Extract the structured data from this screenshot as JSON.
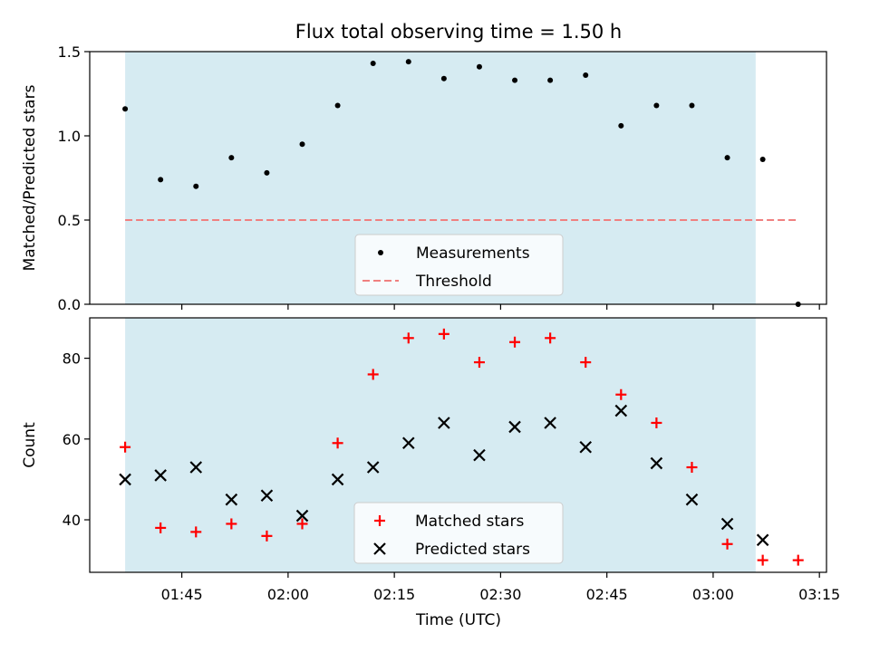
{
  "title": "Flux total observing time = 1.50 h",
  "colors": {
    "shade": "#add8e6",
    "measurement": "#000000",
    "threshold": "#f08080",
    "matched": "#ff0000",
    "predicted": "#000000"
  },
  "chart_data": [
    {
      "type": "scatter",
      "panel": "top",
      "xlabel": "",
      "ylabel": "Matched/Predicted stars",
      "ylim": [
        0,
        1.5
      ],
      "yticks": [
        "0.0",
        "0.5",
        "1.0",
        "1.5"
      ],
      "shaded_span": [
        "01:37",
        "03:06"
      ],
      "threshold": 0.5,
      "legend_location": "lower center",
      "series": [
        {
          "name": "Measurements",
          "marker": "dot",
          "x": [
            "01:37",
            "01:42",
            "01:47",
            "01:52",
            "01:57",
            "02:02",
            "02:07",
            "02:12",
            "02:17",
            "02:22",
            "02:27",
            "02:32",
            "02:37",
            "02:42",
            "02:47",
            "02:52",
            "02:57",
            "03:02",
            "03:07",
            "03:12"
          ],
          "values": [
            1.16,
            0.74,
            0.7,
            0.87,
            0.78,
            0.95,
            1.18,
            1.43,
            1.44,
            1.34,
            1.41,
            1.33,
            1.33,
            1.36,
            1.06,
            1.18,
            1.18,
            0.87,
            0.86,
            0.0
          ]
        },
        {
          "name": "Threshold",
          "marker": "dashed-line",
          "x": [
            "01:37",
            "03:12"
          ],
          "values": [
            0.5,
            0.5
          ]
        }
      ]
    },
    {
      "type": "scatter",
      "panel": "bottom",
      "xlabel": "Time (UTC)",
      "ylabel": "Count",
      "ylim": [
        27,
        90
      ],
      "yticks": [
        "40",
        "60",
        "80"
      ],
      "xticks": [
        "01:45",
        "02:00",
        "02:15",
        "02:30",
        "02:45",
        "03:00",
        "03:15"
      ],
      "xlim": [
        "01:32",
        "03:16"
      ],
      "shaded_span": [
        "01:37",
        "03:06"
      ],
      "legend_location": "lower center",
      "series": [
        {
          "name": "Matched stars",
          "marker": "plus",
          "x": [
            "01:37",
            "01:42",
            "01:47",
            "01:52",
            "01:57",
            "02:02",
            "02:07",
            "02:12",
            "02:17",
            "02:22",
            "02:27",
            "02:32",
            "02:37",
            "02:42",
            "02:47",
            "02:52",
            "02:57",
            "03:02",
            "03:07",
            "03:12"
          ],
          "values": [
            58,
            38,
            37,
            39,
            36,
            39,
            59,
            76,
            85,
            86,
            79,
            84,
            85,
            79,
            71,
            64,
            53,
            34,
            30,
            30
          ]
        },
        {
          "name": "Predicted stars",
          "marker": "x",
          "x": [
            "01:37",
            "01:42",
            "01:47",
            "01:52",
            "01:57",
            "02:02",
            "02:07",
            "02:12",
            "02:17",
            "02:22",
            "02:27",
            "02:32",
            "02:37",
            "02:42",
            "02:47",
            "02:52",
            "02:57",
            "03:02",
            "03:07"
          ],
          "values": [
            50,
            51,
            53,
            45,
            46,
            41,
            50,
            53,
            59,
            64,
            56,
            63,
            64,
            58,
            67,
            54,
            45,
            39,
            35
          ]
        }
      ]
    }
  ]
}
